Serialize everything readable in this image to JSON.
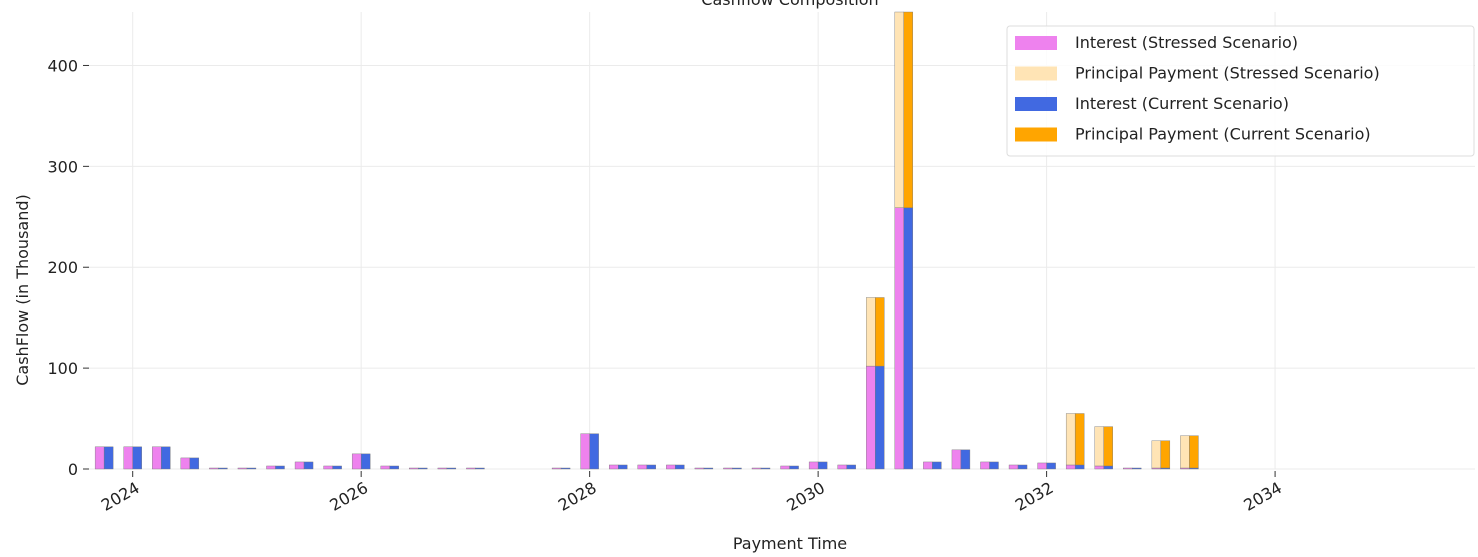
{
  "chart_data": {
    "type": "bar",
    "title": "Cashflow Composition",
    "xlabel": "Payment Time",
    "ylabel": "CashFlow (in Thousand)",
    "x": [
      2023.75,
      2024.0,
      2024.25,
      2024.5,
      2024.75,
      2025.0,
      2025.25,
      2025.5,
      2025.75,
      2026.0,
      2026.25,
      2026.5,
      2026.75,
      2027.0,
      2027.75,
      2028.0,
      2028.25,
      2028.5,
      2028.75,
      2029.0,
      2029.25,
      2029.5,
      2029.75,
      2030.0,
      2030.25,
      2030.5,
      2030.75,
      2031.0,
      2031.25,
      2031.5,
      2031.75,
      2032.0,
      2032.25,
      2032.5,
      2032.75,
      2033.0,
      2033.25
    ],
    "series": [
      {
        "name": "Interest (Stressed Scenario)",
        "color": "#ee82ee",
        "values": [
          22,
          22,
          22,
          11,
          1,
          1,
          3,
          7,
          3,
          15,
          3,
          1,
          1,
          1,
          1,
          35,
          4,
          4,
          4,
          1,
          1,
          1,
          3,
          7,
          4,
          102,
          259,
          7,
          19,
          7,
          4,
          6,
          4,
          3,
          1,
          1,
          1
        ]
      },
      {
        "name": "Principal Payment (Stressed Scenario)",
        "color": "#ffe4b5",
        "values": [
          0,
          0,
          0,
          0,
          0,
          0,
          0,
          0,
          0,
          0,
          0,
          0,
          0,
          0,
          0,
          0,
          0,
          0,
          0,
          0,
          0,
          0,
          0,
          0,
          0,
          68,
          194,
          0,
          0,
          0,
          0,
          0,
          51,
          39,
          0,
          27,
          32
        ]
      },
      {
        "name": "Interest (Current Scenario)",
        "color": "#4169e1",
        "values": [
          22,
          22,
          22,
          11,
          1,
          1,
          3,
          7,
          3,
          15,
          3,
          1,
          1,
          1,
          1,
          35,
          4,
          4,
          4,
          1,
          1,
          1,
          3,
          7,
          4,
          102,
          259,
          7,
          19,
          7,
          4,
          6,
          4,
          3,
          1,
          1,
          1
        ]
      },
      {
        "name": "Principal Payment (Current Scenario)",
        "color": "#ffa500",
        "values": [
          0,
          0,
          0,
          0,
          0,
          0,
          0,
          0,
          0,
          0,
          0,
          0,
          0,
          0,
          0,
          0,
          0,
          0,
          0,
          0,
          0,
          0,
          0,
          0,
          0,
          68,
          194,
          0,
          0,
          0,
          0,
          0,
          51,
          39,
          0,
          27,
          32
        ]
      }
    ],
    "xlim": [
      2023.6,
      2035.75
    ],
    "xticks": [
      2024,
      2026,
      2028,
      2030,
      2032,
      2034
    ],
    "ylim": [
      0,
      453
    ],
    "yticks": [
      0,
      100,
      200,
      300,
      400
    ],
    "grid": true,
    "legend": "upper right"
  }
}
